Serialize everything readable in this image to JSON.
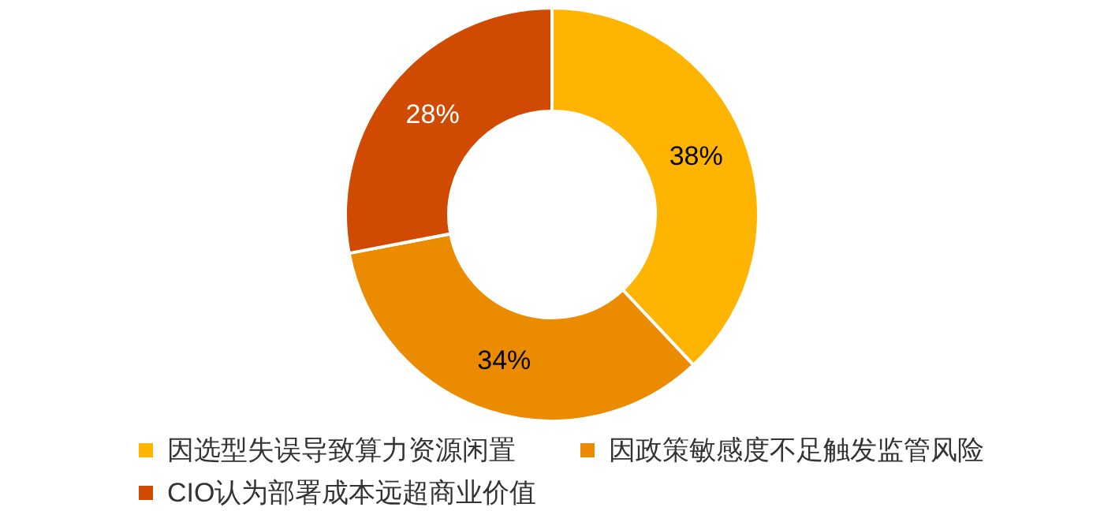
{
  "chart_data": {
    "type": "donut",
    "categories": [
      "因选型失误导致算力资源闲置",
      "因政策敏感度不足触发监管风险",
      "CIO认为部署成本远超商业价值"
    ],
    "values": [
      38,
      34,
      28
    ],
    "colors": [
      "#ffb400",
      "#eb8c00",
      "#d04a02"
    ],
    "value_labels": [
      "38%",
      "34%",
      "28%"
    ],
    "legend": "bottom"
  }
}
